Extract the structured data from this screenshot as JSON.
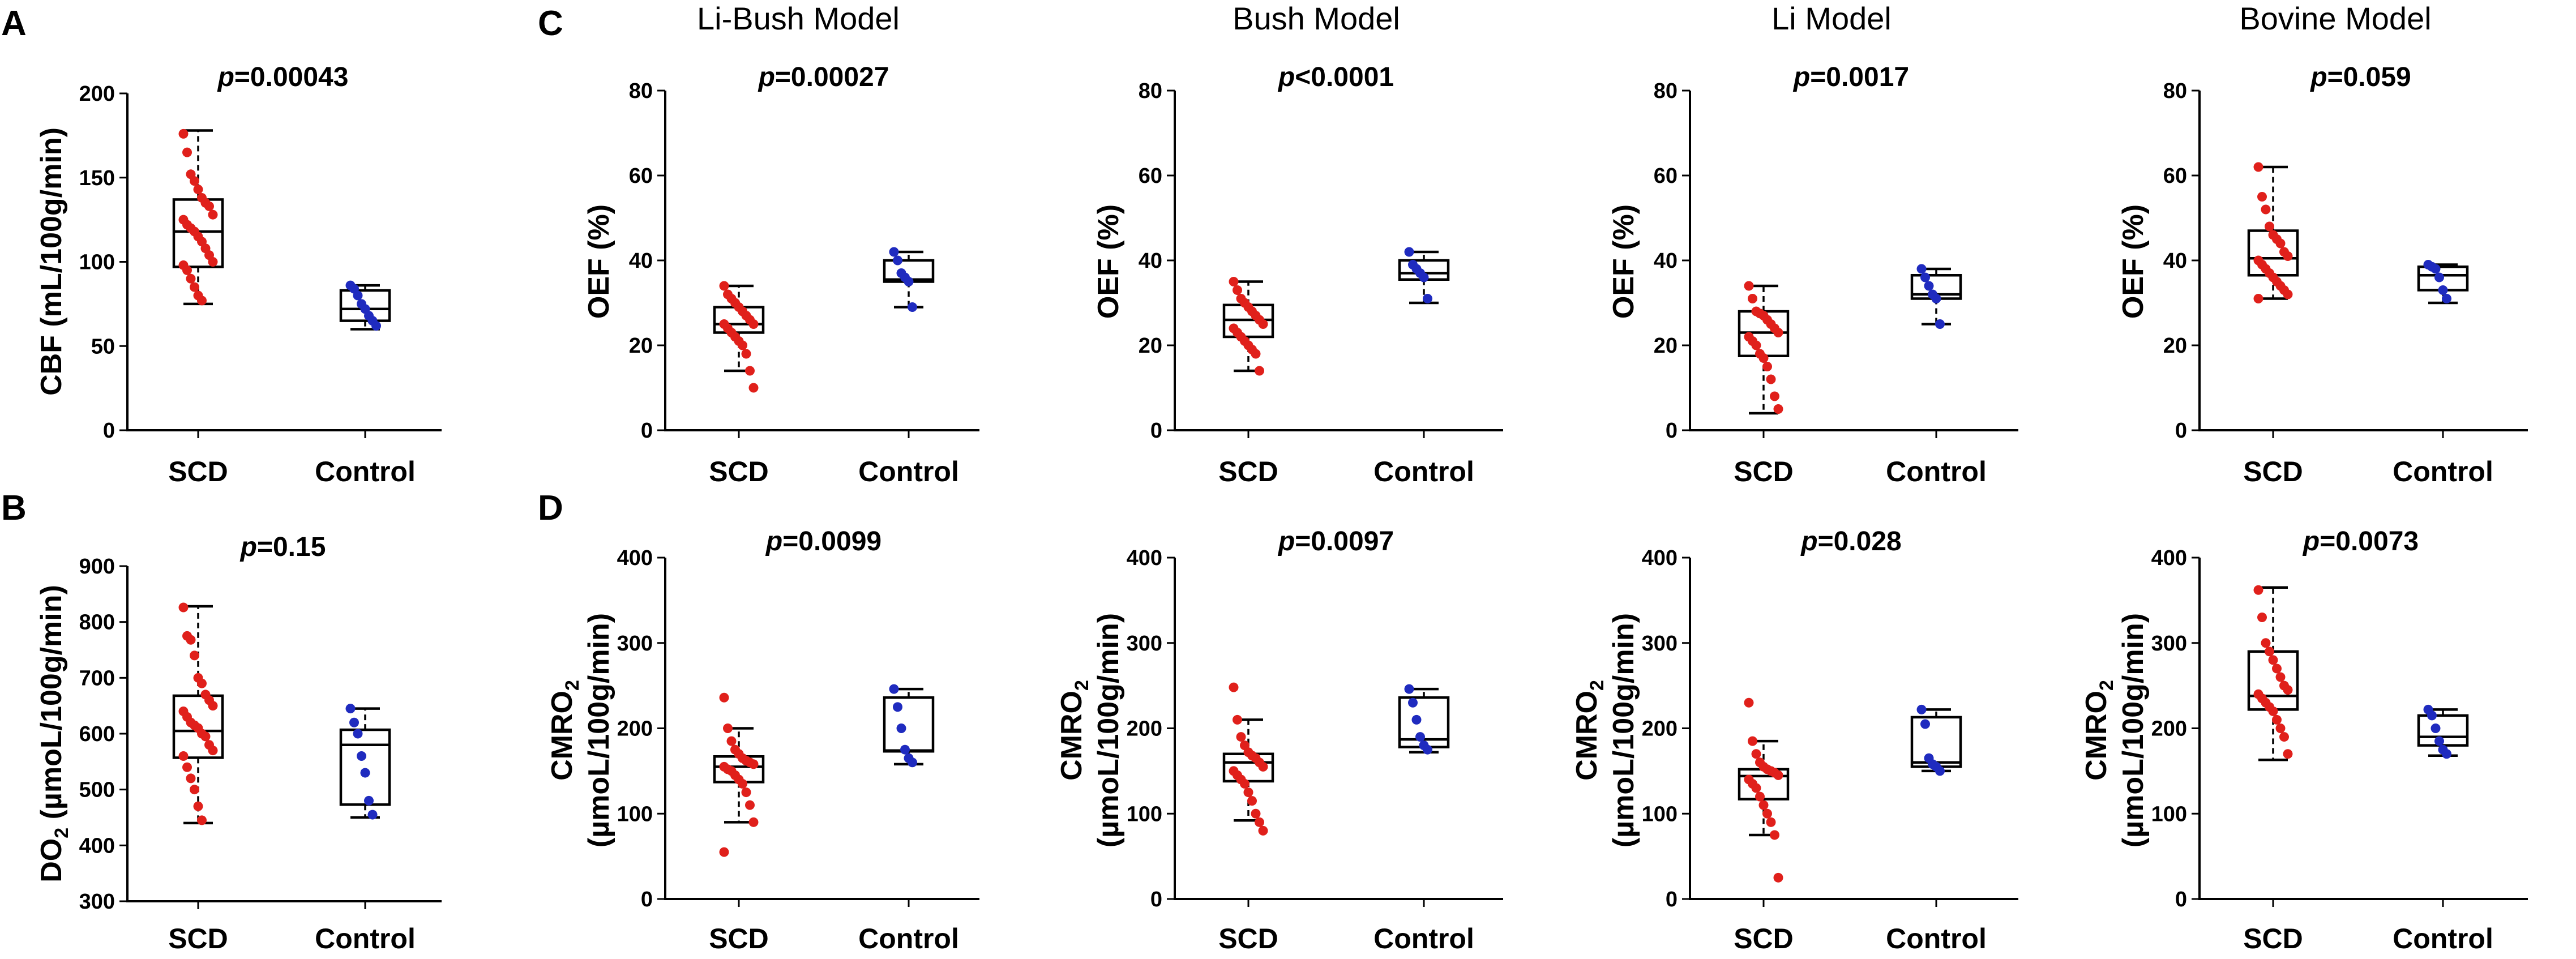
{
  "colors": {
    "scd": "#e0201b",
    "control": "#1f2bbf",
    "axis": "#000000"
  },
  "panel_letters": [
    "A",
    "B",
    "C",
    "D"
  ],
  "model_titles": [
    "Li-Bush Model",
    "Bush Model",
    "Li Model",
    "Bovine Model"
  ],
  "chart_data": [
    {
      "id": "cbf",
      "type": "box",
      "panel": "A",
      "ylabel": "CBF (mL/100g/min)",
      "ylim": [
        0,
        200
      ],
      "yticks": [
        0,
        50,
        100,
        150,
        200
      ],
      "categories": [
        "SCD",
        "Control"
      ],
      "p_label": "p",
      "p_text": "=0.00043",
      "boxes": [
        {
          "q1": 97,
          "median": 118,
          "q3": 137,
          "min": 75,
          "max": 178
        },
        {
          "q1": 65,
          "median": 72,
          "q3": 83,
          "min": 60,
          "max": 86
        }
      ],
      "points": [
        [
          176,
          165,
          152,
          148,
          143,
          138,
          135,
          133,
          128,
          125,
          122,
          120,
          118,
          115,
          112,
          108,
          104,
          100,
          98,
          95,
          90,
          85,
          80,
          77
        ],
        [
          86,
          84,
          80,
          75,
          72,
          68,
          65,
          62
        ]
      ]
    },
    {
      "id": "do2",
      "type": "box",
      "panel": "B",
      "ylabel": "DO2 (µmoL/100g/min)",
      "ylabel_sub": "2",
      "ylim": [
        300,
        900
      ],
      "yticks": [
        300,
        400,
        500,
        600,
        700,
        800,
        900
      ],
      "categories": [
        "SCD",
        "Control"
      ],
      "p_label": "p",
      "p_text": "=0.15",
      "boxes": [
        {
          "q1": 557,
          "median": 605,
          "q3": 668,
          "min": 440,
          "max": 828
        },
        {
          "q1": 473,
          "median": 580,
          "q3": 607,
          "min": 450,
          "max": 645
        }
      ],
      "points": [
        [
          826,
          775,
          768,
          740,
          700,
          690,
          670,
          660,
          650,
          640,
          630,
          620,
          615,
          610,
          600,
          595,
          580,
          570,
          560,
          540,
          520,
          500,
          470,
          445
        ],
        [
          645,
          620,
          600,
          560,
          530,
          480,
          455
        ]
      ]
    },
    {
      "id": "oef-libush",
      "type": "box",
      "panel": "C",
      "ylabel": "OEF (%)",
      "ylim": [
        0,
        80
      ],
      "yticks": [
        0,
        20,
        40,
        60,
        80
      ],
      "categories": [
        "SCD",
        "Control"
      ],
      "p_label": "p",
      "p_text": "=0.00027",
      "boxes": [
        {
          "q1": 23,
          "median": 25,
          "q3": 29,
          "min": 14,
          "max": 34
        },
        {
          "q1": 35,
          "median": 35.5,
          "q3": 40,
          "min": 29,
          "max": 42
        }
      ],
      "points": [
        [
          34,
          32,
          31,
          30,
          29,
          28,
          27,
          26,
          25,
          25,
          24,
          23,
          22,
          21,
          20,
          18,
          14,
          10
        ],
        [
          42,
          40,
          37,
          36,
          35,
          29
        ]
      ]
    },
    {
      "id": "oef-bush",
      "type": "box",
      "panel": "",
      "ylabel": "OEF (%)",
      "ylim": [
        0,
        80
      ],
      "yticks": [
        0,
        20,
        40,
        60,
        80
      ],
      "categories": [
        "SCD",
        "Control"
      ],
      "p_label": "p",
      "p_text": "<0.0001",
      "boxes": [
        {
          "q1": 22,
          "median": 26,
          "q3": 29.5,
          "min": 14,
          "max": 35
        },
        {
          "q1": 35.5,
          "median": 37,
          "q3": 40,
          "min": 30,
          "max": 42
        }
      ],
      "points": [
        [
          35,
          33,
          31,
          30,
          29,
          28,
          27,
          26,
          25,
          24,
          23,
          22,
          21,
          20,
          19,
          18,
          14
        ],
        [
          42,
          39,
          38,
          37,
          36,
          31
        ]
      ]
    },
    {
      "id": "oef-li",
      "type": "box",
      "panel": "",
      "ylabel": "OEF (%)",
      "ylim": [
        0,
        80
      ],
      "yticks": [
        0,
        20,
        40,
        60,
        80
      ],
      "categories": [
        "SCD",
        "Control"
      ],
      "p_label": "p",
      "p_text": "=0.0017",
      "boxes": [
        {
          "q1": 17.5,
          "median": 23,
          "q3": 28,
          "min": 4,
          "max": 34
        },
        {
          "q1": 31,
          "median": 32,
          "q3": 36.5,
          "min": 25,
          "max": 38
        }
      ],
      "points": [
        [
          34,
          31,
          28,
          27.5,
          27,
          26,
          25,
          24,
          23,
          22,
          21,
          20,
          18,
          17,
          15,
          12,
          8,
          5
        ],
        [
          38,
          36,
          34,
          32,
          31,
          25
        ]
      ]
    },
    {
      "id": "oef-bovine",
      "type": "box",
      "panel": "",
      "ylabel": "OEF (%)",
      "ylim": [
        0,
        80
      ],
      "yticks": [
        0,
        20,
        40,
        60,
        80
      ],
      "categories": [
        "SCD",
        "Control"
      ],
      "p_label": "p",
      "p_text": "=0.059",
      "boxes": [
        {
          "q1": 36.5,
          "median": 40.5,
          "q3": 47,
          "min": 31,
          "max": 62
        },
        {
          "q1": 33,
          "median": 36.5,
          "q3": 38.5,
          "min": 30,
          "max": 39
        }
      ],
      "points": [
        [
          62,
          55,
          52,
          48,
          46,
          45,
          44,
          42,
          41,
          40,
          39,
          38,
          37,
          36,
          35,
          34,
          33,
          32,
          31
        ],
        [
          39,
          38.5,
          38,
          36,
          33,
          31
        ]
      ]
    },
    {
      "id": "cmro2-libush",
      "type": "box",
      "panel": "D",
      "ylabel_line1": "CMRO2",
      "ylabel_line1_main": "CMRO",
      "ylabel_line1_sub": "2",
      "ylabel_line2": "(µmoL/100g/min)",
      "ylim": [
        0,
        400
      ],
      "yticks": [
        0,
        100,
        200,
        300,
        400
      ],
      "categories": [
        "SCD",
        "Control"
      ],
      "p_label": "p",
      "p_text": "=0.0099",
      "boxes": [
        {
          "q1": 137,
          "median": 155,
          "q3": 167,
          "min": 90,
          "max": 200
        },
        {
          "q1": 173,
          "median": 174,
          "q3": 236,
          "min": 158,
          "max": 246
        }
      ],
      "points": [
        [
          236,
          200,
          185,
          175,
          170,
          165,
          162,
          160,
          158,
          155,
          152,
          150,
          145,
          140,
          135,
          125,
          110,
          90,
          55
        ],
        [
          246,
          225,
          200,
          175,
          165,
          160
        ]
      ]
    },
    {
      "id": "cmro2-bush",
      "type": "box",
      "panel": "",
      "ylabel_line1": "CMRO2",
      "ylabel_line1_main": "CMRO",
      "ylabel_line1_sub": "2",
      "ylabel_line2": "(µmoL/100g/min)",
      "ylim": [
        0,
        400
      ],
      "yticks": [
        0,
        100,
        200,
        300,
        400
      ],
      "categories": [
        "SCD",
        "Control"
      ],
      "p_label": "p",
      "p_text": "=0.0097",
      "boxes": [
        {
          "q1": 138,
          "median": 160,
          "q3": 170,
          "min": 92,
          "max": 210
        },
        {
          "q1": 178,
          "median": 187,
          "q3": 236,
          "min": 172,
          "max": 246
        }
      ],
      "points": [
        [
          248,
          210,
          190,
          180,
          172,
          168,
          165,
          160,
          155,
          150,
          145,
          140,
          135,
          125,
          115,
          100,
          90,
          80
        ],
        [
          246,
          230,
          210,
          190,
          180,
          175
        ]
      ]
    },
    {
      "id": "cmro2-li",
      "type": "box",
      "panel": "",
      "ylabel_line1": "CMRO2",
      "ylabel_line1_main": "CMRO",
      "ylabel_line1_sub": "2",
      "ylabel_line2": "(µmoL/100g/min)",
      "ylim": [
        0,
        400
      ],
      "yticks": [
        0,
        100,
        200,
        300,
        400
      ],
      "categories": [
        "SCD",
        "Control"
      ],
      "p_label": "p",
      "p_text": "=0.028",
      "boxes": [
        {
          "q1": 117,
          "median": 144,
          "q3": 152,
          "min": 75,
          "max": 185
        },
        {
          "q1": 155,
          "median": 160,
          "q3": 213,
          "min": 150,
          "max": 222
        }
      ],
      "points": [
        [
          230,
          185,
          170,
          160,
          155,
          152,
          150,
          148,
          145,
          140,
          135,
          130,
          120,
          110,
          100,
          90,
          75,
          25
        ],
        [
          222,
          205,
          165,
          158,
          155,
          150
        ]
      ]
    },
    {
      "id": "cmro2-bovine",
      "type": "box",
      "panel": "",
      "ylabel_line1": "CMRO2",
      "ylabel_line1_main": "CMRO",
      "ylabel_line1_sub": "2",
      "ylabel_line2": "(µmoL/100g/min)",
      "ylim": [
        0,
        400
      ],
      "yticks": [
        0,
        100,
        200,
        300,
        400
      ],
      "categories": [
        "SCD",
        "Control"
      ],
      "p_label": "p",
      "p_text": "=0.0073",
      "boxes": [
        {
          "q1": 222,
          "median": 238,
          "q3": 290,
          "min": 163,
          "max": 365
        },
        {
          "q1": 180,
          "median": 190,
          "q3": 215,
          "min": 168,
          "max": 222
        }
      ],
      "points": [
        [
          362,
          330,
          300,
          290,
          280,
          270,
          260,
          250,
          245,
          240,
          235,
          230,
          225,
          220,
          210,
          200,
          190,
          170
        ],
        [
          222,
          215,
          200,
          185,
          175,
          170
        ]
      ]
    }
  ]
}
